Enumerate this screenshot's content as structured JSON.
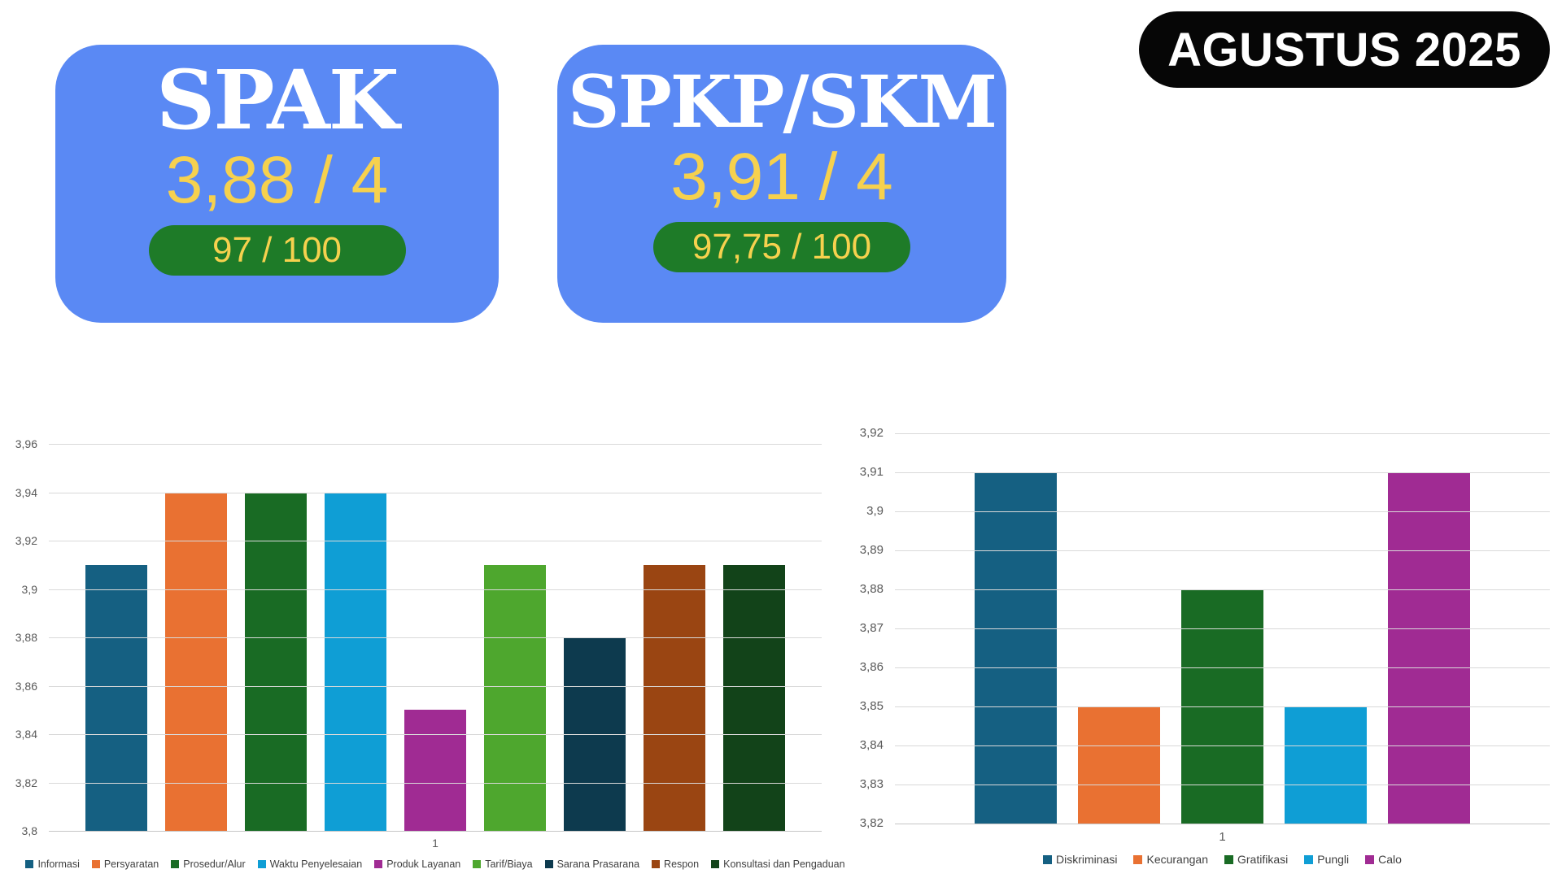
{
  "badge": {
    "label": "AGUSTUS 2025"
  },
  "cards": [
    {
      "title": "SPAK",
      "score": "3,88 / 4",
      "sub_score": "97 / 100"
    },
    {
      "title": "SPKP/SKM",
      "score": "3,91 / 4",
      "sub_score": "97,75 / 100"
    }
  ],
  "colors": {
    "card_background": "#5A89F4",
    "card_title": "#FFFFFF",
    "score_text": "#F6D14E",
    "pill_background": "#1E7B28",
    "badge_background": "#060606",
    "gridline": "#D9D9D9",
    "axis_text": "#595959"
  },
  "chart_data": [
    {
      "type": "bar",
      "title": "",
      "categories": [
        "1"
      ],
      "x_tick": "1",
      "series": [
        {
          "name": "Informasi",
          "value": 3.91,
          "color": "#156082"
        },
        {
          "name": "Persyaratan",
          "value": 3.94,
          "color": "#E97132"
        },
        {
          "name": "Prosedur/Alur",
          "value": 3.94,
          "color": "#196B24"
        },
        {
          "name": "Waktu Penyelesaian",
          "value": 3.94,
          "color": "#0F9ED5"
        },
        {
          "name": "Produk Layanan",
          "value": 3.85,
          "color": "#A02B93"
        },
        {
          "name": "Tarif/Biaya",
          "value": 3.91,
          "color": "#4EA72E"
        },
        {
          "name": "Sarana Prasarana",
          "value": 3.88,
          "color": "#0D3A4E"
        },
        {
          "name": "Respon",
          "value": 3.91,
          "color": "#9A4512"
        },
        {
          "name": "Konsultasi dan Pengaduan",
          "value": 3.91,
          "color": "#124319"
        }
      ],
      "ylim": [
        3.8,
        3.96
      ],
      "ystep": 0.02,
      "grid": true,
      "legend_position": "bottom",
      "decimal_separator": ","
    },
    {
      "type": "bar",
      "title": "",
      "categories": [
        "1"
      ],
      "x_tick": "1",
      "series": [
        {
          "name": "Diskriminasi",
          "value": 3.91,
          "color": "#156082"
        },
        {
          "name": "Kecurangan",
          "value": 3.85,
          "color": "#E97132"
        },
        {
          "name": "Gratifikasi",
          "value": 3.88,
          "color": "#196B24"
        },
        {
          "name": "Pungli",
          "value": 3.85,
          "color": "#0F9ED5"
        },
        {
          "name": "Calo",
          "value": 3.91,
          "color": "#A02B93"
        }
      ],
      "ylim": [
        3.82,
        3.92
      ],
      "ystep": 0.01,
      "grid": true,
      "legend_position": "bottom",
      "decimal_separator": ","
    }
  ]
}
